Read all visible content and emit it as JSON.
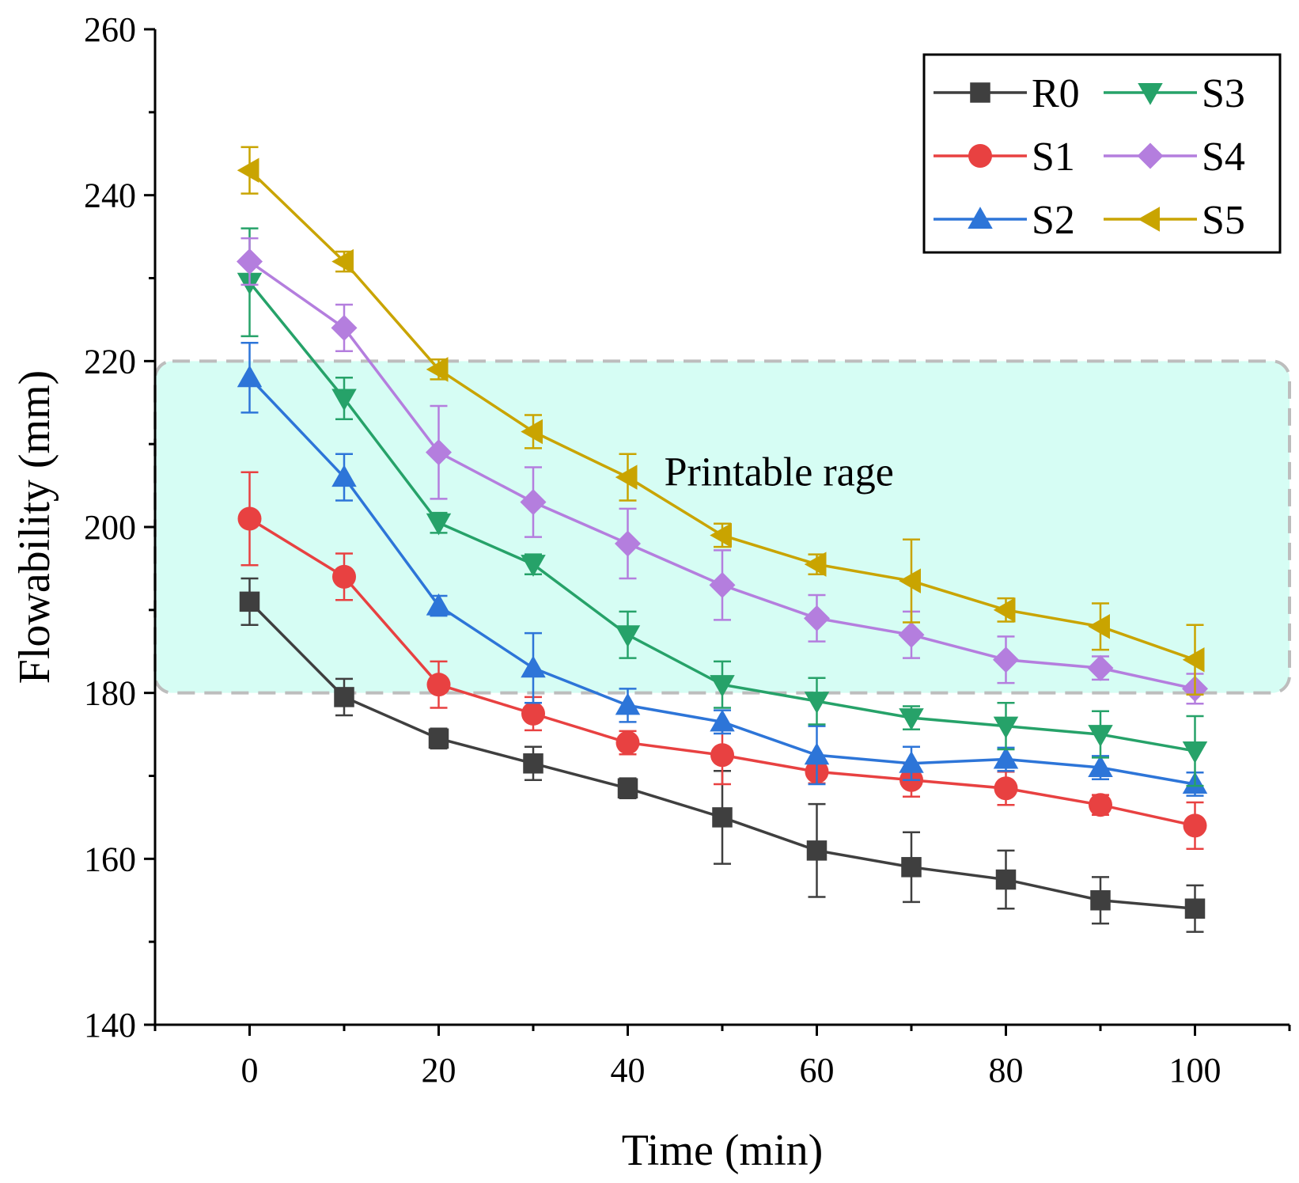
{
  "chart_data": {
    "type": "line",
    "xlabel": "Time (min)",
    "ylabel": "Flowability (mm)",
    "xlim": [
      -10,
      110
    ],
    "ylim": [
      140,
      260
    ],
    "x_ticks": [
      0,
      20,
      40,
      60,
      80,
      100
    ],
    "y_ticks": [
      140,
      160,
      180,
      200,
      220,
      240,
      260
    ],
    "x": [
      0,
      10,
      20,
      30,
      40,
      50,
      60,
      70,
      80,
      90,
      100
    ],
    "band": {
      "label": "Printable rage",
      "ymin": 180,
      "ymax": 220,
      "color": "#d6fdf4",
      "edge": "#bdbdbd"
    },
    "legend_position": "top-right",
    "series": [
      {
        "name": "R0",
        "color": "#3f3f3f",
        "marker": "square",
        "values": [
          191,
          179.5,
          174.5,
          171.5,
          168.5,
          165,
          161,
          159,
          157.5,
          155,
          154
        ],
        "errors": [
          2.8,
          2.2,
          1.2,
          2,
          1.2,
          5.6,
          5.6,
          4.2,
          3.5,
          2.8,
          2.8
        ]
      },
      {
        "name": "S1",
        "color": "#e84141",
        "marker": "circle",
        "values": [
          201,
          194,
          181,
          177.5,
          174,
          172.5,
          170.5,
          169.5,
          168.5,
          166.5,
          164
        ],
        "errors": [
          5.6,
          2.8,
          2.8,
          2,
          1.4,
          3.5,
          1.4,
          2,
          2,
          1.2,
          2.8
        ]
      },
      {
        "name": "S2",
        "color": "#2d75d8",
        "marker": "triangle-up",
        "values": [
          218,
          206,
          190.5,
          183,
          178.5,
          176.5,
          172.5,
          171.5,
          172,
          171,
          169
        ],
        "errors": [
          4.2,
          2.8,
          1.2,
          4.2,
          2,
          1.4,
          3.5,
          2,
          1.4,
          1.4,
          1.4
        ]
      },
      {
        "name": "S3",
        "color": "#26a269",
        "marker": "triangle-down",
        "values": [
          229.5,
          215.5,
          200.5,
          195.5,
          187,
          181,
          179,
          177,
          176,
          175,
          173
        ],
        "errors": [
          6.5,
          2.5,
          1.2,
          1.2,
          2.8,
          2.8,
          2.8,
          1.4,
          2.8,
          2.8,
          4.2
        ]
      },
      {
        "name": "S4",
        "color": "#b47ede",
        "marker": "diamond",
        "values": [
          232,
          224,
          209,
          203,
          198,
          193,
          189,
          187,
          184,
          183,
          180.5
        ],
        "errors": [
          2.8,
          2.8,
          5.6,
          4.2,
          4.2,
          4.2,
          2.8,
          2.8,
          2.8,
          1.4,
          1.8
        ]
      },
      {
        "name": "S5",
        "color": "#c9a400",
        "marker": "triangle-left",
        "values": [
          243,
          232,
          219,
          211.5,
          206,
          199,
          195.5,
          193.5,
          190,
          188,
          184
        ],
        "errors": [
          2.8,
          1.2,
          1.2,
          2,
          2.8,
          1.4,
          1.2,
          5,
          1.4,
          2.8,
          4.2
        ]
      }
    ]
  }
}
